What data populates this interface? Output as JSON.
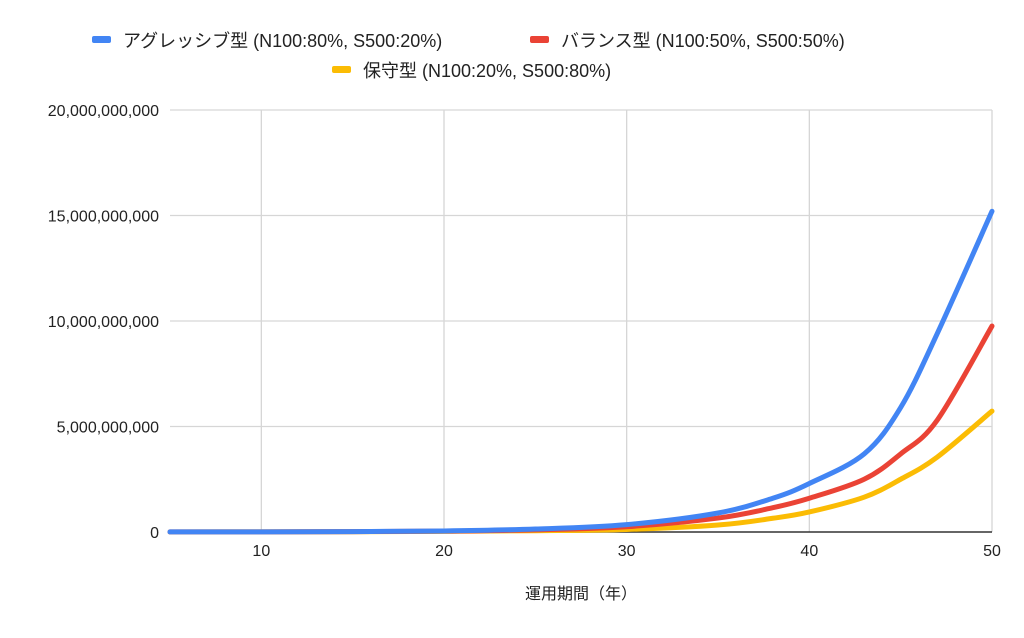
{
  "chart_data": {
    "type": "line",
    "title": "",
    "xlabel": "運用期間（年）",
    "ylabel": "",
    "xlim": [
      5,
      50
    ],
    "ylim": [
      0,
      20000000000
    ],
    "x_ticks": [
      10,
      20,
      30,
      40,
      50
    ],
    "y_ticks": [
      0,
      5000000000,
      10000000000,
      15000000000,
      20000000000
    ],
    "y_tick_labels": [
      "0",
      "5,000,000,000",
      "10,000,000,000",
      "15,000,000,000",
      "20,000,000,000"
    ],
    "grid": true,
    "legend_position": "top",
    "x": [
      5,
      10,
      15,
      20,
      25,
      30,
      35,
      38,
      40,
      43,
      45,
      47,
      50
    ],
    "series": [
      {
        "name": "アグレッシブ型 (N100:80%, S500:20%)",
        "color": "#4285f4",
        "values": [
          3000000,
          8000000,
          20000000,
          50000000,
          140000000,
          350000000,
          900000000,
          1600000000,
          2300000000,
          3700000000,
          5900000000,
          9400000000,
          15200000000
        ]
      },
      {
        "name": "バランス型 (N100:50%, S500:50%)",
        "color": "#ea4335",
        "values": [
          3000000,
          7000000,
          18000000,
          40000000,
          100000000,
          250000000,
          660000000,
          1150000000,
          1600000000,
          2500000000,
          3700000000,
          5300000000,
          9760000000
        ]
      },
      {
        "name": "保守型 (N100:20%, S500:80%)",
        "color": "#fbbc04",
        "values": [
          2000000,
          5000000,
          12000000,
          30000000,
          60000000,
          120000000,
          330000000,
          650000000,
          950000000,
          1650000000,
          2500000000,
          3550000000,
          5730000000
        ]
      }
    ]
  }
}
